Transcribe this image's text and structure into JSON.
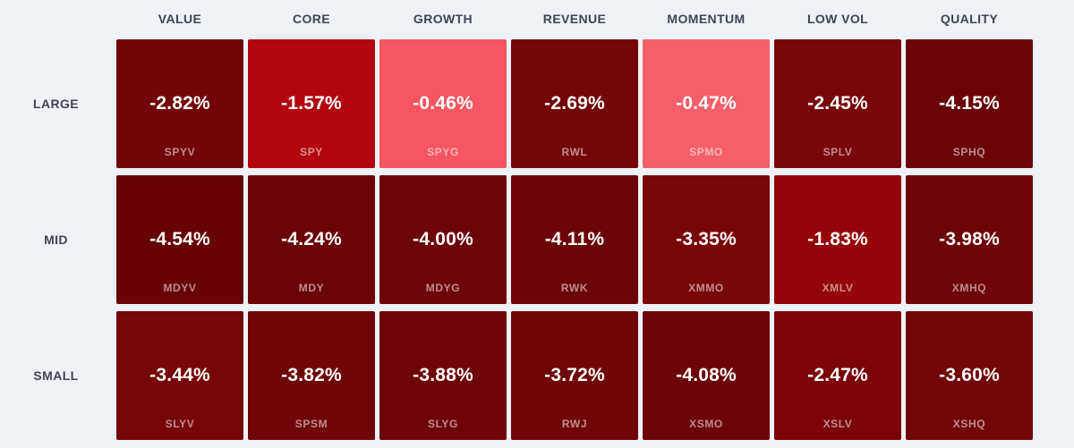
{
  "page": {
    "title": ""
  },
  "colors": {
    "page_background": "#eef2f6",
    "header_text": "#3d4654",
    "cell_value_text": "#ffffff",
    "cell_ticker_text": "rgba(255,255,255,0.55)"
  },
  "chart_data": {
    "type": "heatmap",
    "title": "",
    "value_format": "percent",
    "columns": [
      "VALUE",
      "CORE",
      "GROWTH",
      "REVENUE",
      "MOMENTUM",
      "LOW VOL",
      "QUALITY"
    ],
    "rows": [
      "LARGE",
      "MID",
      "SMALL"
    ],
    "cells": [
      [
        {
          "ticker": "SPYV",
          "label": "-2.82%",
          "value": -2.82,
          "bg": "#720409"
        },
        {
          "ticker": "SPY",
          "label": "-1.57%",
          "value": -1.57,
          "bg": "#b2060f"
        },
        {
          "ticker": "SPYG",
          "label": "-0.46%",
          "value": -0.46,
          "bg": "#f5565f"
        },
        {
          "ticker": "RWL",
          "label": "-2.69%",
          "value": -2.69,
          "bg": "#740409"
        },
        {
          "ticker": "SPMO",
          "label": "-0.47%",
          "value": -0.47,
          "bg": "#f65f67"
        },
        {
          "ticker": "SPLV",
          "label": "-2.45%",
          "value": -2.45,
          "bg": "#7a040b"
        },
        {
          "ticker": "SPHQ",
          "label": "-4.15%",
          "value": -4.15,
          "bg": "#6a0308"
        }
      ],
      [
        {
          "ticker": "MDYV",
          "label": "-4.54%",
          "value": -4.54,
          "bg": "#670207"
        },
        {
          "ticker": "MDY",
          "label": "-4.24%",
          "value": -4.24,
          "bg": "#6a0308"
        },
        {
          "ticker": "MDYG",
          "label": "-4.00%",
          "value": -4.0,
          "bg": "#6d0409"
        },
        {
          "ticker": "RWK",
          "label": "-4.11%",
          "value": -4.11,
          "bg": "#6c0308"
        },
        {
          "ticker": "XMMO",
          "label": "-3.35%",
          "value": -3.35,
          "bg": "#790509"
        },
        {
          "ticker": "XMLV",
          "label": "-1.83%",
          "value": -1.83,
          "bg": "#940409"
        },
        {
          "ticker": "XMHQ",
          "label": "-3.98%",
          "value": -3.98,
          "bg": "#6d0409"
        }
      ],
      [
        {
          "ticker": "SLYV",
          "label": "-3.44%",
          "value": -3.44,
          "bg": "#770509"
        },
        {
          "ticker": "SPSM",
          "label": "-3.82%",
          "value": -3.82,
          "bg": "#6f0409"
        },
        {
          "ticker": "SLYG",
          "label": "-3.88%",
          "value": -3.88,
          "bg": "#6e0409"
        },
        {
          "ticker": "RWJ",
          "label": "-3.72%",
          "value": -3.72,
          "bg": "#700509"
        },
        {
          "ticker": "XSMO",
          "label": "-4.08%",
          "value": -4.08,
          "bg": "#6c0308"
        },
        {
          "ticker": "XSLV",
          "label": "-2.47%",
          "value": -2.47,
          "bg": "#7a040a"
        },
        {
          "ticker": "XSHQ",
          "label": "-3.60%",
          "value": -3.6,
          "bg": "#720509"
        }
      ]
    ]
  }
}
